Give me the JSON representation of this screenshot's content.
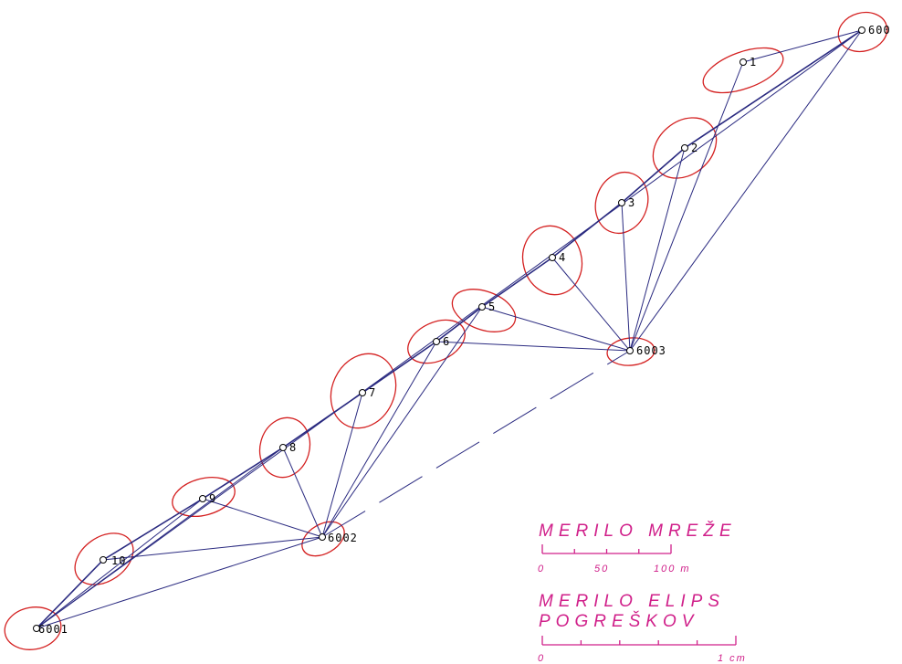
{
  "colors": {
    "lines": "#2a2a80",
    "ellipses": "#d42020",
    "scale": "#d0208a",
    "labels": "#000000",
    "background": "#ffffff"
  },
  "points": [
    {
      "id": "600",
      "label": "600"
    },
    {
      "id": "1",
      "label": "1"
    },
    {
      "id": "2",
      "label": "2"
    },
    {
      "id": "3",
      "label": "3"
    },
    {
      "id": "4",
      "label": "4"
    },
    {
      "id": "5",
      "label": "5"
    },
    {
      "id": "6",
      "label": "6"
    },
    {
      "id": "7",
      "label": "7"
    },
    {
      "id": "8",
      "label": "8"
    },
    {
      "id": "9",
      "label": "9"
    },
    {
      "id": "10",
      "label": "10"
    },
    {
      "id": "6001",
      "label": "6001"
    },
    {
      "id": "6002",
      "label": "6002"
    },
    {
      "id": "6003",
      "label": "6003"
    }
  ],
  "connections": [
    [
      "6001",
      "600"
    ],
    [
      "6001",
      "10"
    ],
    [
      "6001",
      "9"
    ],
    [
      "6001",
      "8"
    ],
    [
      "6001",
      "6002"
    ],
    [
      "600",
      "1"
    ],
    [
      "600",
      "2"
    ],
    [
      "600",
      "6003"
    ],
    [
      "6002",
      "10"
    ],
    [
      "6002",
      "9"
    ],
    [
      "6002",
      "8"
    ],
    [
      "6002",
      "7"
    ],
    [
      "6002",
      "6"
    ],
    [
      "6002",
      "5"
    ],
    [
      "6003",
      "1"
    ],
    [
      "6003",
      "2"
    ],
    [
      "6003",
      "3"
    ],
    [
      "6003",
      "4"
    ],
    [
      "6003",
      "5"
    ],
    [
      "6003",
      "6"
    ]
  ],
  "network_scale": {
    "title": "MERILO MREŽE",
    "ticks": [
      "0",
      "50",
      "100 m"
    ]
  },
  "ellipse_scale": {
    "title_line1": "MERILO ELIPS",
    "title_line2": "POGREŠKOV",
    "ticks": [
      "0",
      "1 cm"
    ]
  }
}
